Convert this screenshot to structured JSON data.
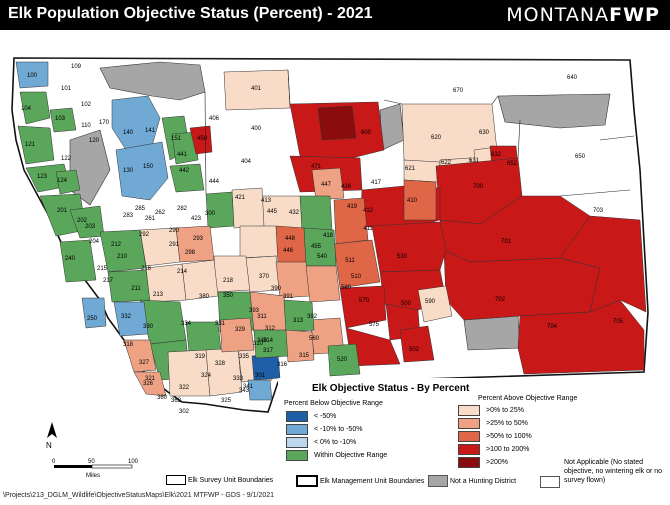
{
  "header": {
    "title": "Elk Population Objective Status (Percent) - 2021",
    "brand_light": "MONTANA",
    "brand_bold": "FWP"
  },
  "legend": {
    "title": "Elk Objective Status - By Percent",
    "below_heading": "Percent Below Objective Range",
    "above_heading": "Percent Above Objective Range",
    "below": [
      {
        "label": "< -50%",
        "color": "#1f5fa8"
      },
      {
        "label": "< -10% to -50%",
        "color": "#6fa9d4"
      },
      {
        "label": "< 0% to -10%",
        "color": "#bcd8ec"
      },
      {
        "label": "Within Objective Range",
        "color": "#5aa65a"
      }
    ],
    "above": [
      {
        "label": ">0% to 25%",
        "color": "#f8dcc8"
      },
      {
        "label": ">25% to 50%",
        "color": "#eea283"
      },
      {
        "label": ">50% to 100%",
        "color": "#e06648"
      },
      {
        "label": ">100 to 200%",
        "color": "#c91818"
      },
      {
        "label": ">200%",
        "color": "#8a0c0c"
      }
    ],
    "survey_units": "Elk Survey Unit Boundaries",
    "management_units": "Elk Management Unit Boundaries",
    "not_hunting": "Not a Hunting District",
    "not_applicable": "Not Applicable (No stated objective, no wintering elk or no survey flown)"
  },
  "scale": {
    "ticks": [
      "0",
      "50",
      "100"
    ],
    "unit": "Miles"
  },
  "north": "N",
  "footer": "\\Projects\\213_DGLM_Wildlife\\ObjectiveStatusMaps\\Elk\\2021     MTFWP - GDS - 9/1/2021",
  "colors": {
    "neutral": "#a6a6a6",
    "na": "#ffffff",
    "outline": "#111111"
  },
  "districts": [
    {
      "id": "100",
      "status": "b2"
    },
    {
      "id": "101",
      "status": "na"
    },
    {
      "id": "109",
      "status": "na"
    },
    {
      "id": "102",
      "status": "na"
    },
    {
      "id": "104",
      "status": "w"
    },
    {
      "id": "103",
      "status": "w"
    },
    {
      "id": "170",
      "status": "na"
    },
    {
      "id": "110",
      "status": "na"
    },
    {
      "id": "120",
      "status": "na"
    },
    {
      "id": "121",
      "status": "w"
    },
    {
      "id": "122",
      "status": "na"
    },
    {
      "id": "123",
      "status": "w"
    },
    {
      "id": "124",
      "status": "w"
    },
    {
      "id": "130",
      "status": "b2"
    },
    {
      "id": "140",
      "status": "b2"
    },
    {
      "id": "141",
      "status": "b2"
    },
    {
      "id": "150",
      "status": "b2"
    },
    {
      "id": "151",
      "status": "w"
    },
    {
      "id": "441",
      "status": "w"
    },
    {
      "id": "442",
      "status": "w"
    },
    {
      "id": "450",
      "status": "a4"
    },
    {
      "id": "444",
      "status": "na"
    },
    {
      "id": "406",
      "status": "na"
    },
    {
      "id": "401",
      "status": "a1"
    },
    {
      "id": "400",
      "status": "na"
    },
    {
      "id": "404",
      "status": "na"
    },
    {
      "id": "471",
      "status": "na"
    },
    {
      "id": "600",
      "status": "a5"
    },
    {
      "id": "426",
      "status": "a4"
    },
    {
      "id": "417",
      "status": "a4"
    },
    {
      "id": "620",
      "status": "a1"
    },
    {
      "id": "630",
      "status": "a1"
    },
    {
      "id": "621",
      "status": "a1"
    },
    {
      "id": "622",
      "status": "a1"
    },
    {
      "id": "631",
      "status": "a1"
    },
    {
      "id": "632",
      "status": "a1"
    },
    {
      "id": "652",
      "status": "a4"
    },
    {
      "id": "640",
      "status": "na"
    },
    {
      "id": "670",
      "status": "na"
    },
    {
      "id": "650",
      "status": "na"
    },
    {
      "id": "700",
      "status": "a4"
    },
    {
      "id": "703",
      "status": "na"
    },
    {
      "id": "701",
      "status": "a4"
    },
    {
      "id": "702",
      "status": "a4"
    },
    {
      "id": "704",
      "status": "a4"
    },
    {
      "id": "705",
      "status": "a4"
    },
    {
      "id": "410",
      "status": "a2"
    },
    {
      "id": "412",
      "status": "a4"
    },
    {
      "id": "411",
      "status": "a4"
    },
    {
      "id": "530",
      "status": "a4"
    },
    {
      "id": "510",
      "status": "a4"
    },
    {
      "id": "511",
      "status": "a3"
    },
    {
      "id": "580",
      "status": "a4"
    },
    {
      "id": "570",
      "status": "a4"
    },
    {
      "id": "575",
      "status": "a4"
    },
    {
      "id": "500",
      "status": "a4"
    },
    {
      "id": "590",
      "status": "a1"
    },
    {
      "id": "502",
      "status": "a4"
    },
    {
      "id": "520",
      "status": "w"
    },
    {
      "id": "560",
      "status": "a2"
    },
    {
      "id": "447",
      "status": "a2"
    },
    {
      "id": "419",
      "status": "na"
    },
    {
      "id": "418",
      "status": "w"
    },
    {
      "id": "432",
      "status": "w"
    },
    {
      "id": "540",
      "status": "w"
    },
    {
      "id": "455",
      "status": "w"
    },
    {
      "id": "446",
      "status": "w"
    },
    {
      "id": "448",
      "status": "a3"
    },
    {
      "id": "421",
      "status": "a1"
    },
    {
      "id": "445",
      "status": "a1"
    },
    {
      "id": "413",
      "status": "w"
    },
    {
      "id": "201",
      "status": "w"
    },
    {
      "id": "202",
      "status": "w"
    },
    {
      "id": "203",
      "status": "w"
    },
    {
      "id": "204",
      "status": "w"
    },
    {
      "id": "240",
      "status": "w"
    },
    {
      "id": "250",
      "status": "b2"
    },
    {
      "id": "261",
      "status": "w"
    },
    {
      "id": "262",
      "status": "w"
    },
    {
      "id": "282",
      "status": "w"
    },
    {
      "id": "283",
      "status": "b3"
    },
    {
      "id": "285",
      "status": "w"
    },
    {
      "id": "290",
      "status": "a1"
    },
    {
      "id": "291",
      "status": "a1"
    },
    {
      "id": "292",
      "status": "a1"
    },
    {
      "id": "293",
      "status": "w"
    },
    {
      "id": "298",
      "status": "a1"
    },
    {
      "id": "210",
      "status": "w"
    },
    {
      "id": "211",
      "status": "a1"
    },
    {
      "id": "212",
      "status": "a2"
    },
    {
      "id": "213",
      "status": "w"
    },
    {
      "id": "214",
      "status": "w"
    },
    {
      "id": "215",
      "status": "a1"
    },
    {
      "id": "216",
      "status": "w"
    },
    {
      "id": "217",
      "status": "a1"
    },
    {
      "id": "218",
      "status": "w"
    },
    {
      "id": "380",
      "status": "a1"
    },
    {
      "id": "350",
      "status": "a1"
    },
    {
      "id": "370",
      "status": "a1"
    },
    {
      "id": "390",
      "status": "a1"
    },
    {
      "id": "391",
      "status": "a1"
    },
    {
      "id": "392",
      "status": "a1"
    },
    {
      "id": "393",
      "status": "a2"
    },
    {
      "id": "311",
      "status": "a2"
    },
    {
      "id": "312",
      "status": "a2"
    },
    {
      "id": "313",
      "status": "a2"
    },
    {
      "id": "314",
      "status": "w"
    },
    {
      "id": "315",
      "status": "a2"
    },
    {
      "id": "316",
      "status": "w"
    },
    {
      "id": "317",
      "status": "a2"
    },
    {
      "id": "318",
      "status": "w"
    },
    {
      "id": "319",
      "status": "b1"
    },
    {
      "id": "321",
      "status": "na"
    },
    {
      "id": "322",
      "status": "a1"
    },
    {
      "id": "324",
      "status": "a2"
    },
    {
      "id": "325",
      "status": "a1"
    },
    {
      "id": "326",
      "status": "a1"
    },
    {
      "id": "327",
      "status": "a1"
    },
    {
      "id": "328",
      "status": "a2"
    },
    {
      "id": "329",
      "status": "a2"
    },
    {
      "id": "330",
      "status": "a1"
    },
    {
      "id": "331",
      "status": "w"
    },
    {
      "id": "332",
      "status": "b2"
    },
    {
      "id": "333",
      "status": "a2"
    },
    {
      "id": "334",
      "status": "na"
    },
    {
      "id": "335",
      "status": "w"
    },
    {
      "id": "340",
      "status": "w"
    },
    {
      "id": "341",
      "status": "w"
    },
    {
      "id": "343",
      "status": "a2"
    },
    {
      "id": "360",
      "status": "na"
    },
    {
      "id": "362",
      "status": "b2"
    },
    {
      "id": "302",
      "status": "a2"
    },
    {
      "id": "301",
      "status": "a1"
    },
    {
      "id": "300",
      "status": "na"
    },
    {
      "id": "310",
      "status": "b1"
    },
    {
      "id": "423",
      "status": "w"
    },
    {
      "id": "339",
      "status": "w"
    },
    {
      "id": "280",
      "status": "w"
    }
  ]
}
